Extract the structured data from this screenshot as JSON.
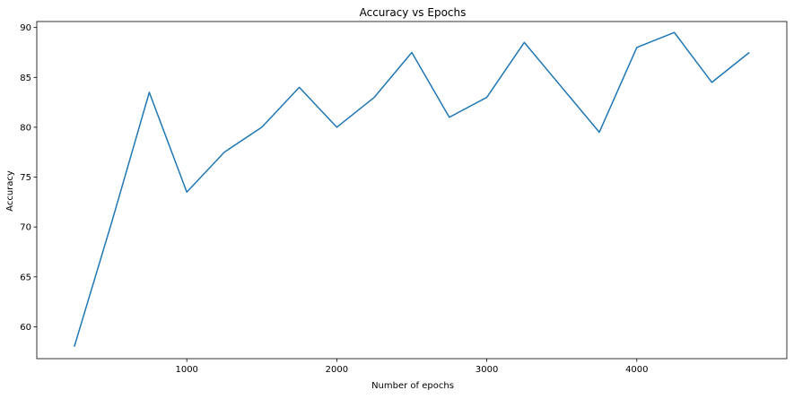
{
  "chart_data": {
    "type": "line",
    "title": "Accuracy vs Epochs",
    "xlabel": "Number of epochs",
    "ylabel": "Accuracy",
    "xlim": [
      0,
      5000
    ],
    "ylim": [
      56.8,
      90.6
    ],
    "xticks": [
      1000,
      2000,
      3000,
      4000
    ],
    "xtick_labels": [
      "1000",
      "2000",
      "3000",
      "4000"
    ],
    "yticks": [
      60,
      65,
      70,
      75,
      80,
      85,
      90
    ],
    "ytick_labels": [
      "60",
      "65",
      "70",
      "75",
      "80",
      "85",
      "90"
    ],
    "grid": false,
    "legend": "none",
    "line_color": "#1f77b4",
    "series": [
      {
        "x": [
          250,
          500,
          750,
          1000,
          1250,
          1500,
          1750,
          2000,
          2250,
          2500,
          2750,
          3000,
          3250,
          3500,
          3750,
          4000,
          4250,
          4500,
          4750
        ],
        "y": [
          58.0,
          70.5,
          83.5,
          73.5,
          77.5,
          80.0,
          84.0,
          80.0,
          83.0,
          87.5,
          81.0,
          83.0,
          88.5,
          84.0,
          79.5,
          88.0,
          89.5,
          84.5,
          87.5
        ]
      }
    ]
  }
}
